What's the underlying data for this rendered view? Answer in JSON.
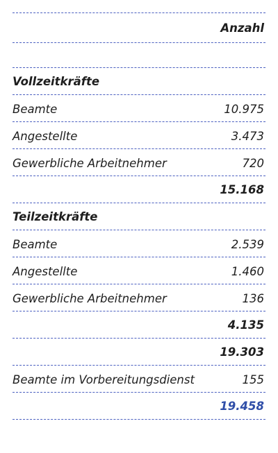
{
  "header": {
    "column_label": "Anzahl"
  },
  "sections": [
    {
      "title": "Vollzeitkräfte",
      "rows": [
        {
          "label": "Beamte",
          "value": "10.975"
        },
        {
          "label": "Angestellte",
          "value": "3.473"
        },
        {
          "label": "Gewerbliche Arbeitnehmer",
          "value": "720"
        }
      ],
      "subtotal": "15.168"
    },
    {
      "title": "Teilzeitkräfte",
      "rows": [
        {
          "label": "Beamte",
          "value": "2.539"
        },
        {
          "label": "Angestellte",
          "value": "1.460"
        },
        {
          "label": "Gewerbliche Arbeitnehmer",
          "value": "136"
        }
      ],
      "subtotal": "4.135"
    }
  ],
  "combined_total": "19.303",
  "extra_row": {
    "label": "Beamte im Vorbereitungsdienst",
    "value": "155"
  },
  "grand_total": "19.458",
  "colors": {
    "rule": "#4a5fc0",
    "grand_total": "#2f4ea8",
    "text": "#1e1e1e"
  }
}
